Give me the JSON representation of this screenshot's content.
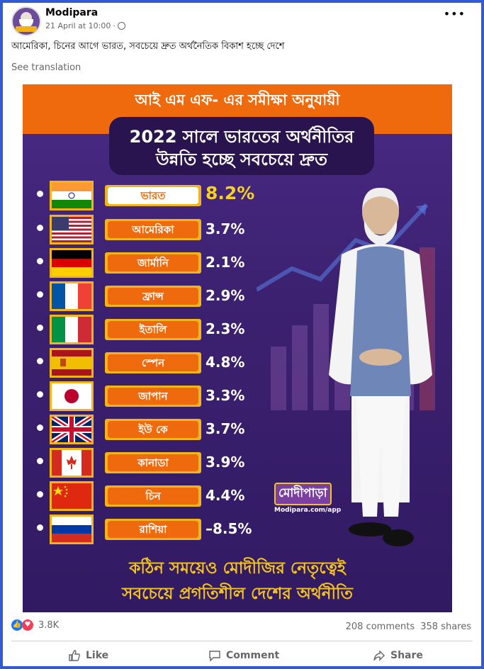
{
  "post": {
    "page_name": "Modipara",
    "timestamp": "21 April at 10:00",
    "separator": "·",
    "caption": "আমেরিকা, চিনের আগে ভারত, সবচেয়ে দ্রুত অর্থনৈতিক বিকাশ হচ্ছে দেশে",
    "see_translation": "See translation",
    "more_icon": "more-dots-icon"
  },
  "poster": {
    "banner": "আই এম এফ- এর সমীক্ষা অনুযায়ী",
    "subtitle_line1": "2022 সালে ভারতের অর্থনীতির",
    "subtitle_line2": "উন্নতি হচ্ছে সবচেয়ে দ্রুত",
    "countries": [
      {
        "name": "ভারত",
        "value": "8.2%",
        "flag": "india"
      },
      {
        "name": "আমেরিকা",
        "value": "3.7%",
        "flag": "usa"
      },
      {
        "name": "জার্মানি",
        "value": "2.1%",
        "flag": "germany"
      },
      {
        "name": "ফ্রান্স",
        "value": "2.9%",
        "flag": "france"
      },
      {
        "name": "ইতালি",
        "value": "2.3%",
        "flag": "italy"
      },
      {
        "name": "স্পেন",
        "value": "4.8%",
        "flag": "spain"
      },
      {
        "name": "জাপান",
        "value": "3.3%",
        "flag": "japan"
      },
      {
        "name": "ইউ কে",
        "value": "3.7%",
        "flag": "uk"
      },
      {
        "name": "কানাডা",
        "value": "3.9%",
        "flag": "canada"
      },
      {
        "name": "চিন",
        "value": "4.4%",
        "flag": "china"
      },
      {
        "name": "রাশিয়া",
        "value": "–8.5%",
        "flag": "russia"
      }
    ],
    "logo_text": "মোদীপাড়া",
    "logo_url": "Modipara.com/app",
    "footer_line1": "কঠিন সময়েও মোদীজির নেতৃত্বেই",
    "footer_line2": "সবচেয়ে প্রগতিশীল দেশের অর্থনীতি"
  },
  "engagement": {
    "reaction_count": "3.8K",
    "comments": "208 comments",
    "shares": "358 shares"
  },
  "actions": {
    "like": "Like",
    "comment": "Comment",
    "share": "Share"
  }
}
